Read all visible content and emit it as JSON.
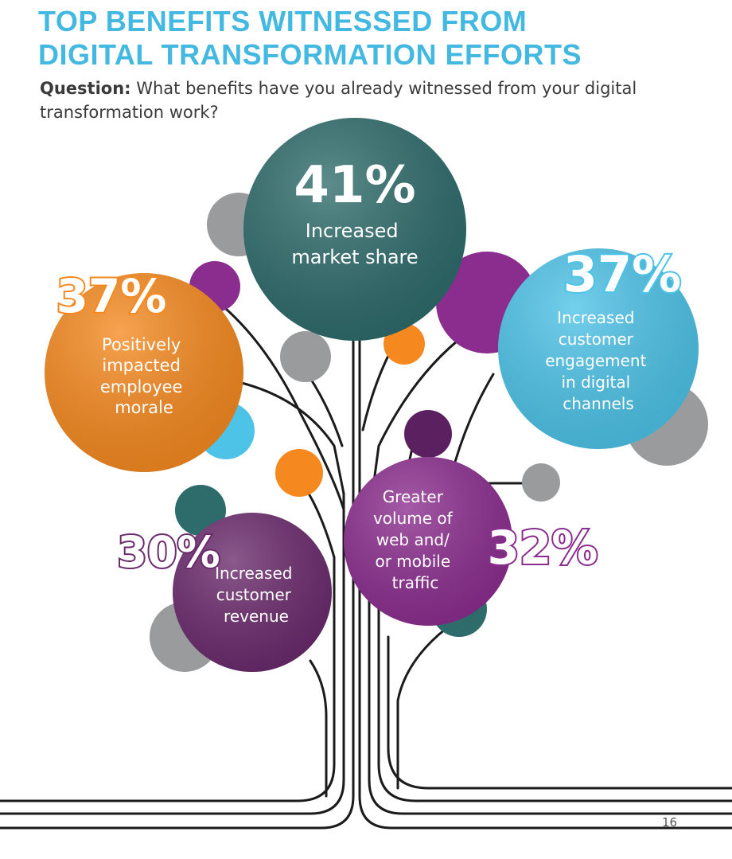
{
  "header": {
    "title_line1": "TOP BENEFITS WITNESSED FROM",
    "title_line2": "DIGITAL TRANSFORMATION EFFORTS",
    "question_label": "Question:",
    "question_text": " What benefits have you already witnessed from your digital transformation work?"
  },
  "page_number": "16",
  "colors": {
    "title": "#43b8e0",
    "teal": "#2e6b6b",
    "orange": "#f5891f",
    "sky": "#4dc3e8",
    "purple": "#6a2a6c",
    "violet": "#8b2d8e",
    "gray": "#9a9b9d"
  },
  "chart_data": {
    "type": "bar",
    "title": "TOP BENEFITS WITNESSED FROM DIGITAL TRANSFORMATION EFFORTS",
    "unit": "%",
    "categories": [
      "Increased market share",
      "Positively impacted employee morale",
      "Increased customer engagement in digital channels",
      "Greater volume of web and/ or mobile traffic",
      "Increased customer revenue"
    ],
    "values": [
      41,
      37,
      37,
      32,
      30
    ],
    "value_labels": [
      "41%",
      "37%",
      "37%",
      "32%",
      "30%"
    ],
    "label_lines": [
      [
        "Increased",
        "market share"
      ],
      [
        "Positively",
        "impacted",
        "employee",
        "morale"
      ],
      [
        "Increased",
        "customer",
        "engagement",
        "in digital",
        "channels"
      ],
      [
        "Greater",
        "volume of",
        "web and/",
        "or mobile",
        "traffic"
      ],
      [
        "Increased",
        "customer",
        "revenue"
      ]
    ]
  }
}
